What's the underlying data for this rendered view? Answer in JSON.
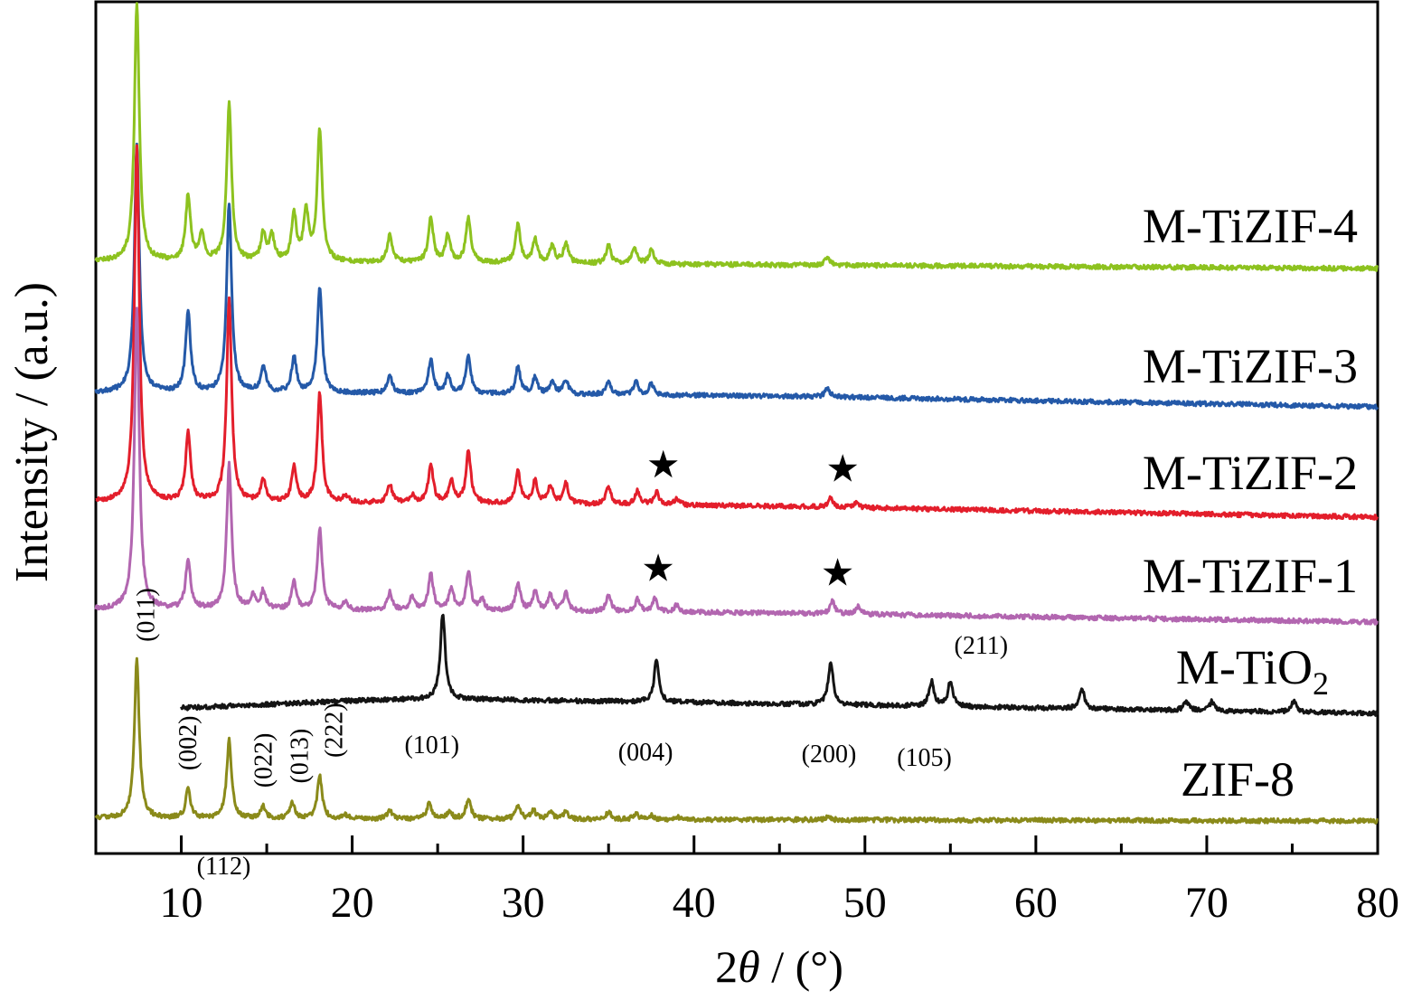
{
  "chart_data": {
    "type": "line",
    "xlabel": "2θ / (°)",
    "xlabel_parts": {
      "pre": "2",
      "var": "θ",
      "post": " / (°)"
    },
    "ylabel": "Intensity / (a.u.)",
    "xlim": [
      5,
      80
    ],
    "xticks": [
      10,
      20,
      30,
      40,
      50,
      60,
      70,
      80
    ],
    "yticks": "none",
    "grid": false,
    "legend": "none (curve labels at right)",
    "series": [
      {
        "name": "M-TiZIF-4",
        "color": "#8dc21f",
        "x_range": [
          5,
          80
        ],
        "baseline": 289,
        "drift": [
          [
            5,
            0
          ],
          [
            10,
            0
          ],
          [
            30,
            2
          ],
          [
            45,
            4
          ],
          [
            80,
            8
          ]
        ],
        "peaks": [
          [
            7.4,
            285
          ],
          [
            10.4,
            72
          ],
          [
            11.2,
            30
          ],
          [
            12.8,
            175
          ],
          [
            14.8,
            30
          ],
          [
            15.3,
            28
          ],
          [
            16.6,
            50
          ],
          [
            17.3,
            55
          ],
          [
            18.1,
            145
          ],
          [
            22.2,
            30
          ],
          [
            24.6,
            50
          ],
          [
            25.6,
            30
          ],
          [
            26.8,
            50
          ],
          [
            29.7,
            42
          ],
          [
            30.7,
            25
          ],
          [
            31.7,
            20
          ],
          [
            32.5,
            22
          ],
          [
            35.0,
            20
          ],
          [
            36.5,
            18
          ],
          [
            37.5,
            15
          ],
          [
            47.8,
            8
          ]
        ]
      },
      {
        "name": "M-TiZIF-3",
        "color": "#2459a8",
        "x_range": [
          5,
          80
        ],
        "baseline": 434,
        "drift": [
          [
            5,
            0
          ],
          [
            10,
            0
          ],
          [
            30,
            2
          ],
          [
            45,
            4
          ],
          [
            80,
            16
          ]
        ],
        "peaks": [
          [
            7.4,
            275
          ],
          [
            10.4,
            88
          ],
          [
            12.8,
            210
          ],
          [
            14.8,
            30
          ],
          [
            16.6,
            40
          ],
          [
            18.1,
            115
          ],
          [
            22.2,
            20
          ],
          [
            24.6,
            38
          ],
          [
            25.6,
            20
          ],
          [
            26.8,
            42
          ],
          [
            29.7,
            30
          ],
          [
            30.7,
            18
          ],
          [
            31.7,
            14
          ],
          [
            32.5,
            16
          ],
          [
            35.0,
            15
          ],
          [
            36.6,
            14
          ],
          [
            37.5,
            12
          ],
          [
            47.8,
            10
          ]
        ]
      },
      {
        "name": "M-TiZIF-2",
        "color": "#e31e2b",
        "x_range": [
          5,
          80
        ],
        "baseline": 555,
        "drift": [
          [
            5,
            0
          ],
          [
            10,
            0
          ],
          [
            30,
            2
          ],
          [
            45,
            5
          ],
          [
            80,
            17
          ]
        ],
        "peaks": [
          [
            7.4,
            395
          ],
          [
            10.4,
            75
          ],
          [
            12.8,
            225
          ],
          [
            14.8,
            25
          ],
          [
            16.6,
            40
          ],
          [
            18.1,
            120
          ],
          [
            19.6,
            8
          ],
          [
            22.2,
            20
          ],
          [
            23.5,
            8
          ],
          [
            24.6,
            42
          ],
          [
            25.8,
            25
          ],
          [
            26.8,
            57
          ],
          [
            29.7,
            35
          ],
          [
            30.7,
            25
          ],
          [
            31.6,
            20
          ],
          [
            32.5,
            22
          ],
          [
            35.0,
            20
          ],
          [
            36.7,
            15
          ],
          [
            37.8,
            14
          ],
          [
            39.0,
            8
          ],
          [
            48.0,
            10
          ],
          [
            49.5,
            6
          ]
        ]
      },
      {
        "name": "M-TiZIF-1",
        "color": "#b266b0",
        "x_range": [
          5,
          80
        ],
        "baseline": 674,
        "drift": [
          [
            5,
            0
          ],
          [
            10,
            0
          ],
          [
            30,
            2
          ],
          [
            45,
            4
          ],
          [
            80,
            14
          ]
        ],
        "peaks": [
          [
            7.4,
            335
          ],
          [
            10.4,
            55
          ],
          [
            12.8,
            160
          ],
          [
            14.2,
            15
          ],
          [
            14.8,
            20
          ],
          [
            16.6,
            30
          ],
          [
            18.1,
            90
          ],
          [
            19.6,
            8
          ],
          [
            22.2,
            20
          ],
          [
            23.5,
            15
          ],
          [
            24.6,
            40
          ],
          [
            25.8,
            25
          ],
          [
            26.8,
            42
          ],
          [
            27.6,
            12
          ],
          [
            29.7,
            30
          ],
          [
            30.7,
            22
          ],
          [
            31.6,
            18
          ],
          [
            32.5,
            20
          ],
          [
            35.0,
            18
          ],
          [
            36.7,
            14
          ],
          [
            37.7,
            14
          ],
          [
            39.0,
            8
          ],
          [
            48.1,
            14
          ],
          [
            49.6,
            8
          ]
        ]
      },
      {
        "name": "M-TiO2",
        "color": "#141414",
        "x_range": [
          10,
          80
        ],
        "baseline": 783,
        "drift": [
          [
            10,
            0
          ],
          [
            20,
            -8
          ],
          [
            25,
            -10
          ],
          [
            40,
            -6
          ],
          [
            80,
            6
          ]
        ],
        "peaks": [
          [
            25.3,
            95
          ],
          [
            37.8,
            45
          ],
          [
            48.0,
            48
          ],
          [
            53.9,
            28
          ],
          [
            55.0,
            28
          ],
          [
            62.7,
            22
          ],
          [
            68.8,
            10
          ],
          [
            70.3,
            10
          ],
          [
            75.1,
            12
          ]
        ]
      },
      {
        "name": "ZIF-8",
        "color": "#8a8a1a",
        "x_range": [
          5,
          80
        ],
        "baseline": 905,
        "drift": [
          [
            5,
            0
          ],
          [
            80,
            3
          ]
        ],
        "peaks": [
          [
            7.4,
            175
          ],
          [
            10.4,
            32
          ],
          [
            12.8,
            87
          ],
          [
            14.8,
            13
          ],
          [
            16.5,
            18
          ],
          [
            18.1,
            47
          ],
          [
            19.6,
            4
          ],
          [
            22.2,
            10
          ],
          [
            24.5,
            17
          ],
          [
            25.7,
            8
          ],
          [
            26.8,
            22
          ],
          [
            29.7,
            14
          ],
          [
            30.6,
            10
          ],
          [
            31.6,
            8
          ],
          [
            32.5,
            8
          ],
          [
            35.0,
            8
          ],
          [
            36.6,
            6
          ],
          [
            37.5,
            4
          ],
          [
            39.0,
            3
          ],
          [
            47.8,
            3
          ]
        ]
      }
    ],
    "series_labels": [
      {
        "series": "M-TiZIF-4",
        "text": "M-TiZIF-4"
      },
      {
        "series": "M-TiZIF-3",
        "text": "M-TiZIF-3"
      },
      {
        "series": "M-TiZIF-2",
        "text": "M-TiZIF-2"
      },
      {
        "series": "M-TiZIF-1",
        "text": "M-TiZIF-1"
      },
      {
        "series": "M-TiO2",
        "text": "M-TiO",
        "subscript": "2"
      },
      {
        "series": "ZIF-8",
        "text": "ZIF-8"
      }
    ],
    "peak_annotations": [
      {
        "text": "(011)",
        "x": 7.4,
        "series": "ZIF-8",
        "rotated": true
      },
      {
        "text": "(002)",
        "x": 10.4,
        "series": "ZIF-8",
        "rotated": true
      },
      {
        "text": "(112)",
        "x": 12.8,
        "series": "ZIF-8",
        "rotated": false
      },
      {
        "text": "(022)",
        "x": 14.8,
        "series": "ZIF-8",
        "rotated": true
      },
      {
        "text": "(013)",
        "x": 16.5,
        "series": "ZIF-8",
        "rotated": true
      },
      {
        "text": "(222)",
        "x": 18.1,
        "series": "ZIF-8",
        "rotated": true
      },
      {
        "text": "(101)",
        "x": 25.3,
        "series": "M-TiO2",
        "rotated": false
      },
      {
        "text": "(004)",
        "x": 37.8,
        "series": "M-TiO2",
        "rotated": false
      },
      {
        "text": "(200)",
        "x": 48.0,
        "series": "M-TiO2",
        "rotated": false
      },
      {
        "text": "(105)",
        "x": 53.9,
        "series": "M-TiO2",
        "rotated": false
      },
      {
        "text": "(211)",
        "x": 55.0,
        "series": "M-TiO2",
        "rotated": false
      }
    ],
    "star_markers": [
      {
        "symbol": "★",
        "series": "M-TiZIF-2",
        "x": 38.2
      },
      {
        "symbol": "★",
        "series": "M-TiZIF-2",
        "x": 48.7
      },
      {
        "symbol": "★",
        "series": "M-TiZIF-1",
        "x": 37.9
      },
      {
        "symbol": "★",
        "series": "M-TiZIF-1",
        "x": 48.4
      }
    ]
  }
}
